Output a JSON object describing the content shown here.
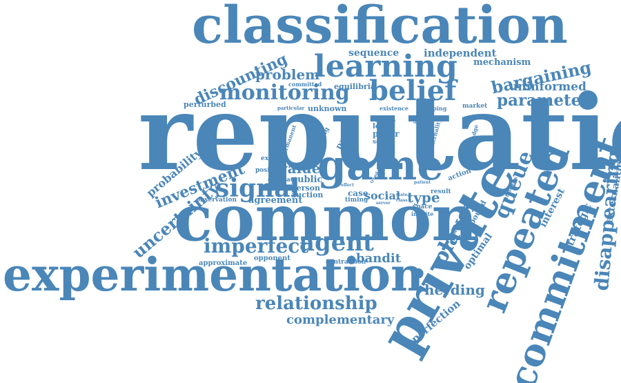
{
  "word_cloud": {
    "color": "#4a86b8",
    "words": [
      {
        "id": "classification",
        "text": "classification"
      },
      {
        "id": "reputation",
        "text": "reputation"
      },
      {
        "id": "common",
        "text": "common"
      },
      {
        "id": "experimentation",
        "text": "experimentation"
      },
      {
        "id": "private",
        "text": "private"
      },
      {
        "id": "commitment",
        "text": "commitment"
      },
      {
        "id": "repeated",
        "text": "repeated"
      },
      {
        "id": "game",
        "text": "game"
      },
      {
        "id": "learning",
        "text": "learning"
      },
      {
        "id": "belief",
        "text": "belief"
      },
      {
        "id": "monitoring",
        "text": "monitoring"
      },
      {
        "id": "signal",
        "text": "signal"
      },
      {
        "id": "agent",
        "text": "agent"
      },
      {
        "id": "imperfect",
        "text": "imperfect"
      },
      {
        "id": "player",
        "text": "player"
      },
      {
        "id": "queue",
        "text": "queue"
      },
      {
        "id": "disappearing",
        "text": "disappearing"
      },
      {
        "id": "relationship",
        "text": "relationship"
      },
      {
        "id": "bargaining",
        "text": "bargaining"
      },
      {
        "id": "parameter",
        "text": "parameter"
      },
      {
        "id": "discounting",
        "text": "discounting"
      },
      {
        "id": "uncertainty",
        "text": "uncertainty"
      },
      {
        "id": "investment",
        "text": "investment"
      },
      {
        "id": "problem",
        "text": "problem"
      },
      {
        "id": "uninformed",
        "text": "uninformed"
      },
      {
        "id": "complementary",
        "text": "complementary"
      },
      {
        "id": "herding",
        "text": "herding"
      },
      {
        "id": "bandit",
        "text": "bandit"
      },
      {
        "id": "probability",
        "text": "probability"
      },
      {
        "id": "sequence",
        "text": "sequence"
      },
      {
        "id": "independent",
        "text": "independent"
      },
      {
        "id": "mechanism",
        "text": "mechanism"
      },
      {
        "id": "externalities",
        "text": "externalities"
      },
      {
        "id": "strategic",
        "text": "strategic"
      },
      {
        "id": "interest",
        "text": "interest"
      },
      {
        "id": "optimal",
        "text": "optimal"
      },
      {
        "id": "perfection",
        "text": "perfection"
      },
      {
        "id": "type",
        "text": "type"
      },
      {
        "id": "social",
        "text": "social"
      },
      {
        "id": "value",
        "text": "value"
      },
      {
        "id": "public",
        "text": "public"
      },
      {
        "id": "equilibria",
        "text": "equilibria"
      },
      {
        "id": "unknown",
        "text": "unknown"
      },
      {
        "id": "perturbed",
        "text": "perturbed"
      },
      {
        "id": "committed",
        "text": "committed"
      },
      {
        "id": "particular",
        "text": "particular"
      },
      {
        "id": "existence",
        "text": "existence"
      },
      {
        "id": "mapping",
        "text": "mapping"
      },
      {
        "id": "market",
        "text": "market"
      },
      {
        "id": "symmetric",
        "text": "symmetric"
      },
      {
        "id": "permanent",
        "text": "permanent"
      },
      {
        "id": "extend",
        "text": "extend"
      },
      {
        "id": "positive",
        "text": "positive"
      },
      {
        "id": "contract",
        "text": "contract"
      },
      {
        "id": "person",
        "text": "person"
      },
      {
        "id": "auction",
        "text": "auction"
      },
      {
        "id": "agreement",
        "text": "agreement"
      },
      {
        "id": "observation",
        "text": "observation"
      },
      {
        "id": "approximate",
        "text": "approximate"
      },
      {
        "id": "opponent",
        "text": "opponent"
      },
      {
        "id": "contraction",
        "text": "contraction"
      },
      {
        "id": "case",
        "text": "case"
      },
      {
        "id": "timing",
        "text": "timing"
      },
      {
        "id": "space",
        "text": "space"
      },
      {
        "id": "infinite",
        "text": "infinite"
      },
      {
        "id": "result",
        "text": "result"
      },
      {
        "id": "action",
        "text": "action"
      },
      {
        "id": "example",
        "text": "example"
      },
      {
        "id": "bound",
        "text": "bound"
      },
      {
        "id": "paper",
        "text": "paper"
      },
      {
        "id": "lower",
        "text": "lower"
      },
      {
        "id": "analyze",
        "text": "analyze"
      },
      {
        "id": "seller",
        "text": "seller"
      },
      {
        "id": "buyer",
        "text": "buyer"
      },
      {
        "id": "payoff",
        "text": "payoff"
      },
      {
        "id": "facing",
        "text": "facing"
      },
      {
        "id": "short",
        "text": "short"
      },
      {
        "id": "knowledge",
        "text": "knowledge"
      },
      {
        "id": "period",
        "text": "period"
      },
      {
        "id": "externality",
        "text": "externality"
      },
      {
        "id": "strategies",
        "text": "strategies"
      },
      {
        "id": "provide",
        "text": "provide"
      },
      {
        "id": "patient",
        "text": "patient"
      },
      {
        "id": "server",
        "text": "server"
      },
      {
        "id": "state",
        "text": "state"
      },
      {
        "id": "class",
        "text": "class"
      },
      {
        "id": "trend",
        "text": "trend"
      },
      {
        "id": "effect",
        "text": "effect"
      }
    ]
  }
}
